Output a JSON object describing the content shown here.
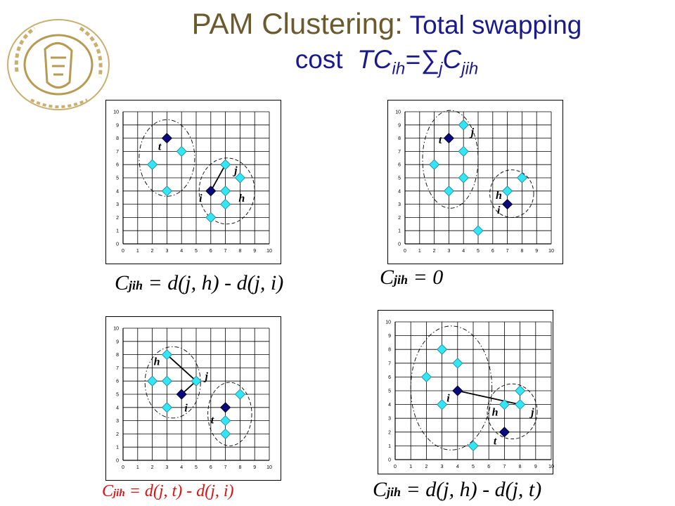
{
  "title": {
    "lead": "PAM Clustering:",
    "rest": " Total swapping",
    "line2_prefix": "cost  ",
    "tc": "TC",
    "tc_sub": "ih",
    "eq": "=",
    "sigma": "∑",
    "sigma_sub": "j",
    "c": "C",
    "c_sub": "jih"
  },
  "colors": {
    "title_lead": "#6b5a2e",
    "title": "#1a1a8c",
    "medoid": "#0a0a80",
    "point": "#33e6f5",
    "formula_black": "#000000",
    "formula_red": "#e01010"
  },
  "panels": [
    {
      "id": "top-left",
      "axis": {
        "x": [
          "0",
          "1",
          "2",
          "3",
          "4",
          "5",
          "6",
          "7",
          "8",
          "9",
          "10"
        ],
        "y": [
          "0",
          "1",
          "2",
          "3",
          "4",
          "5",
          "6",
          "7",
          "8",
          "9",
          "10"
        ]
      },
      "medoids": [
        [
          3,
          8
        ],
        [
          6,
          4
        ]
      ],
      "points": [
        [
          2,
          6
        ],
        [
          3,
          4
        ],
        [
          4,
          7
        ],
        [
          7,
          6
        ],
        [
          8,
          5
        ],
        [
          7,
          4
        ],
        [
          7,
          3
        ],
        [
          6,
          2
        ]
      ],
      "labels": [
        {
          "text": "t",
          "x": 2.4,
          "y": 7.1
        },
        {
          "text": "j",
          "x": 7.6,
          "y": 5.3
        },
        {
          "text": "i",
          "x": 5.2,
          "y": 3.2
        },
        {
          "text": "h",
          "x": 7.9,
          "y": 3.2
        }
      ],
      "lines": [
        [
          [
            6,
            4
          ],
          [
            7,
            6
          ]
        ]
      ],
      "clusters": [
        {
          "cx": 3.0,
          "cy": 6.5,
          "rx": 1.9,
          "ry": 2.9,
          "style": "dashdot"
        },
        {
          "cx": 7.1,
          "cy": 4.0,
          "rx": 1.9,
          "ry": 2.5,
          "style": "dash"
        }
      ],
      "formula": {
        "c": "C",
        "sub": "jih",
        "text": " = d(j, h) - d(j, i)",
        "color": "black"
      }
    },
    {
      "id": "top-right",
      "axis": {
        "x": [
          "0",
          "1",
          "2",
          "3",
          "4",
          "5",
          "6",
          "7",
          "8",
          "9",
          "10"
        ],
        "y": [
          "0",
          "1",
          "2",
          "3",
          "4",
          "5",
          "6",
          "7",
          "8",
          "9",
          "10"
        ]
      },
      "medoids": [
        [
          3,
          8
        ],
        [
          7,
          3
        ]
      ],
      "points": [
        [
          2,
          6
        ],
        [
          3,
          4
        ],
        [
          4,
          9
        ],
        [
          4,
          7
        ],
        [
          4,
          5
        ],
        [
          5,
          1
        ],
        [
          7,
          4
        ],
        [
          8,
          5
        ]
      ],
      "labels": [
        {
          "text": "j",
          "x": 4.5,
          "y": 8.2
        },
        {
          "text": "t",
          "x": 2.3,
          "y": 7.6
        },
        {
          "text": "h",
          "x": 6.2,
          "y": 3.4
        },
        {
          "text": "i",
          "x": 6.3,
          "y": 2.3
        }
      ],
      "lines": [],
      "clusters": [
        {
          "cx": 3.1,
          "cy": 6.4,
          "rx": 1.9,
          "ry": 3.7,
          "style": "dashdot"
        },
        {
          "cx": 7.3,
          "cy": 3.8,
          "rx": 1.5,
          "ry": 1.8,
          "style": "dash"
        }
      ],
      "formula": {
        "c": "C",
        "sub": "jih",
        "text": " = 0",
        "color": "black"
      }
    },
    {
      "id": "bottom-left",
      "axis": {
        "x": [
          "0",
          "1",
          "2",
          "3",
          "4",
          "5",
          "6",
          "7",
          "8",
          "9",
          "10"
        ],
        "y": [
          "0",
          "1",
          "2",
          "3",
          "4",
          "5",
          "6",
          "7",
          "8",
          "9",
          "10"
        ]
      },
      "medoids": [
        [
          4,
          5
        ],
        [
          7,
          4
        ]
      ],
      "points": [
        [
          2,
          6
        ],
        [
          3,
          6
        ],
        [
          3,
          8
        ],
        [
          3,
          4
        ],
        [
          5,
          6
        ],
        [
          8,
          5
        ],
        [
          7,
          3
        ],
        [
          7,
          2
        ]
      ],
      "labels": [
        {
          "text": "h",
          "x": 2.1,
          "y": 7.2
        },
        {
          "text": "j",
          "x": 5.6,
          "y": 6.1
        },
        {
          "text": "i",
          "x": 4.2,
          "y": 3.7
        },
        {
          "text": "t",
          "x": 6.0,
          "y": 2.8
        }
      ],
      "lines": [
        [
          [
            3,
            8
          ],
          [
            5,
            6
          ]
        ],
        [
          [
            5,
            6
          ],
          [
            4,
            5
          ]
        ]
      ],
      "clusters": [
        {
          "cx": 3.4,
          "cy": 5.9,
          "rx": 1.9,
          "ry": 2.7,
          "style": "dashdot"
        },
        {
          "cx": 7.3,
          "cy": 3.5,
          "rx": 1.5,
          "ry": 2.4,
          "style": "dash"
        }
      ],
      "formula": {
        "c": "C",
        "sub": "jih",
        "text": " = d(j, t) - d(j, i)",
        "color": "red"
      }
    },
    {
      "id": "bottom-right",
      "axis": {
        "x": [
          "0",
          "1",
          "2",
          "3",
          "4",
          "5",
          "6",
          "7",
          "8",
          "9",
          "10"
        ],
        "y": [
          "0",
          "1",
          "2",
          "3",
          "4",
          "5",
          "6",
          "7",
          "8",
          "9",
          "10"
        ]
      },
      "medoids": [
        [
          4,
          5
        ],
        [
          7,
          2
        ]
      ],
      "points": [
        [
          2,
          6
        ],
        [
          3,
          8
        ],
        [
          3,
          4
        ],
        [
          4,
          7
        ],
        [
          5,
          1
        ],
        [
          7,
          4
        ],
        [
          8,
          4
        ],
        [
          8,
          5
        ]
      ],
      "labels": [
        {
          "text": "i",
          "x": 3.3,
          "y": 4.2
        },
        {
          "text": "h",
          "x": 6.2,
          "y": 3.2
        },
        {
          "text": "j",
          "x": 8.7,
          "y": 3.2
        },
        {
          "text": "t",
          "x": 6.3,
          "y": 1.1
        }
      ],
      "lines": [
        [
          [
            4,
            5
          ],
          [
            8,
            4
          ]
        ]
      ],
      "clusters": [
        {
          "cx": 3.6,
          "cy": 5.2,
          "rx": 2.6,
          "ry": 4.5,
          "style": "dashdot"
        },
        {
          "cx": 7.5,
          "cy": 3.5,
          "rx": 1.6,
          "ry": 2.0,
          "style": "dash"
        }
      ],
      "formula": {
        "c": "C",
        "sub": "jih",
        "text": " = d(j, h) - d(j, t)",
        "color": "black"
      }
    }
  ]
}
